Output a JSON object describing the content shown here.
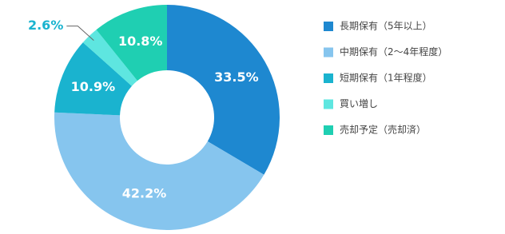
{
  "chart_data": {
    "type": "donut",
    "categories": [
      "長期保有（5年以上）",
      "中期保有（2〜4年程度）",
      "短期保有（1年程度）",
      "買い増し",
      "売却予定（売却済）"
    ],
    "values": [
      33.5,
      42.2,
      10.9,
      2.6,
      10.8
    ],
    "value_labels": [
      "33.5%",
      "42.2%",
      "10.9%",
      "2.6%",
      "10.8%"
    ],
    "colors": [
      "#1e88d0",
      "#86c5ee",
      "#1ab3cf",
      "#5ee6e0",
      "#1fcfb2"
    ]
  }
}
